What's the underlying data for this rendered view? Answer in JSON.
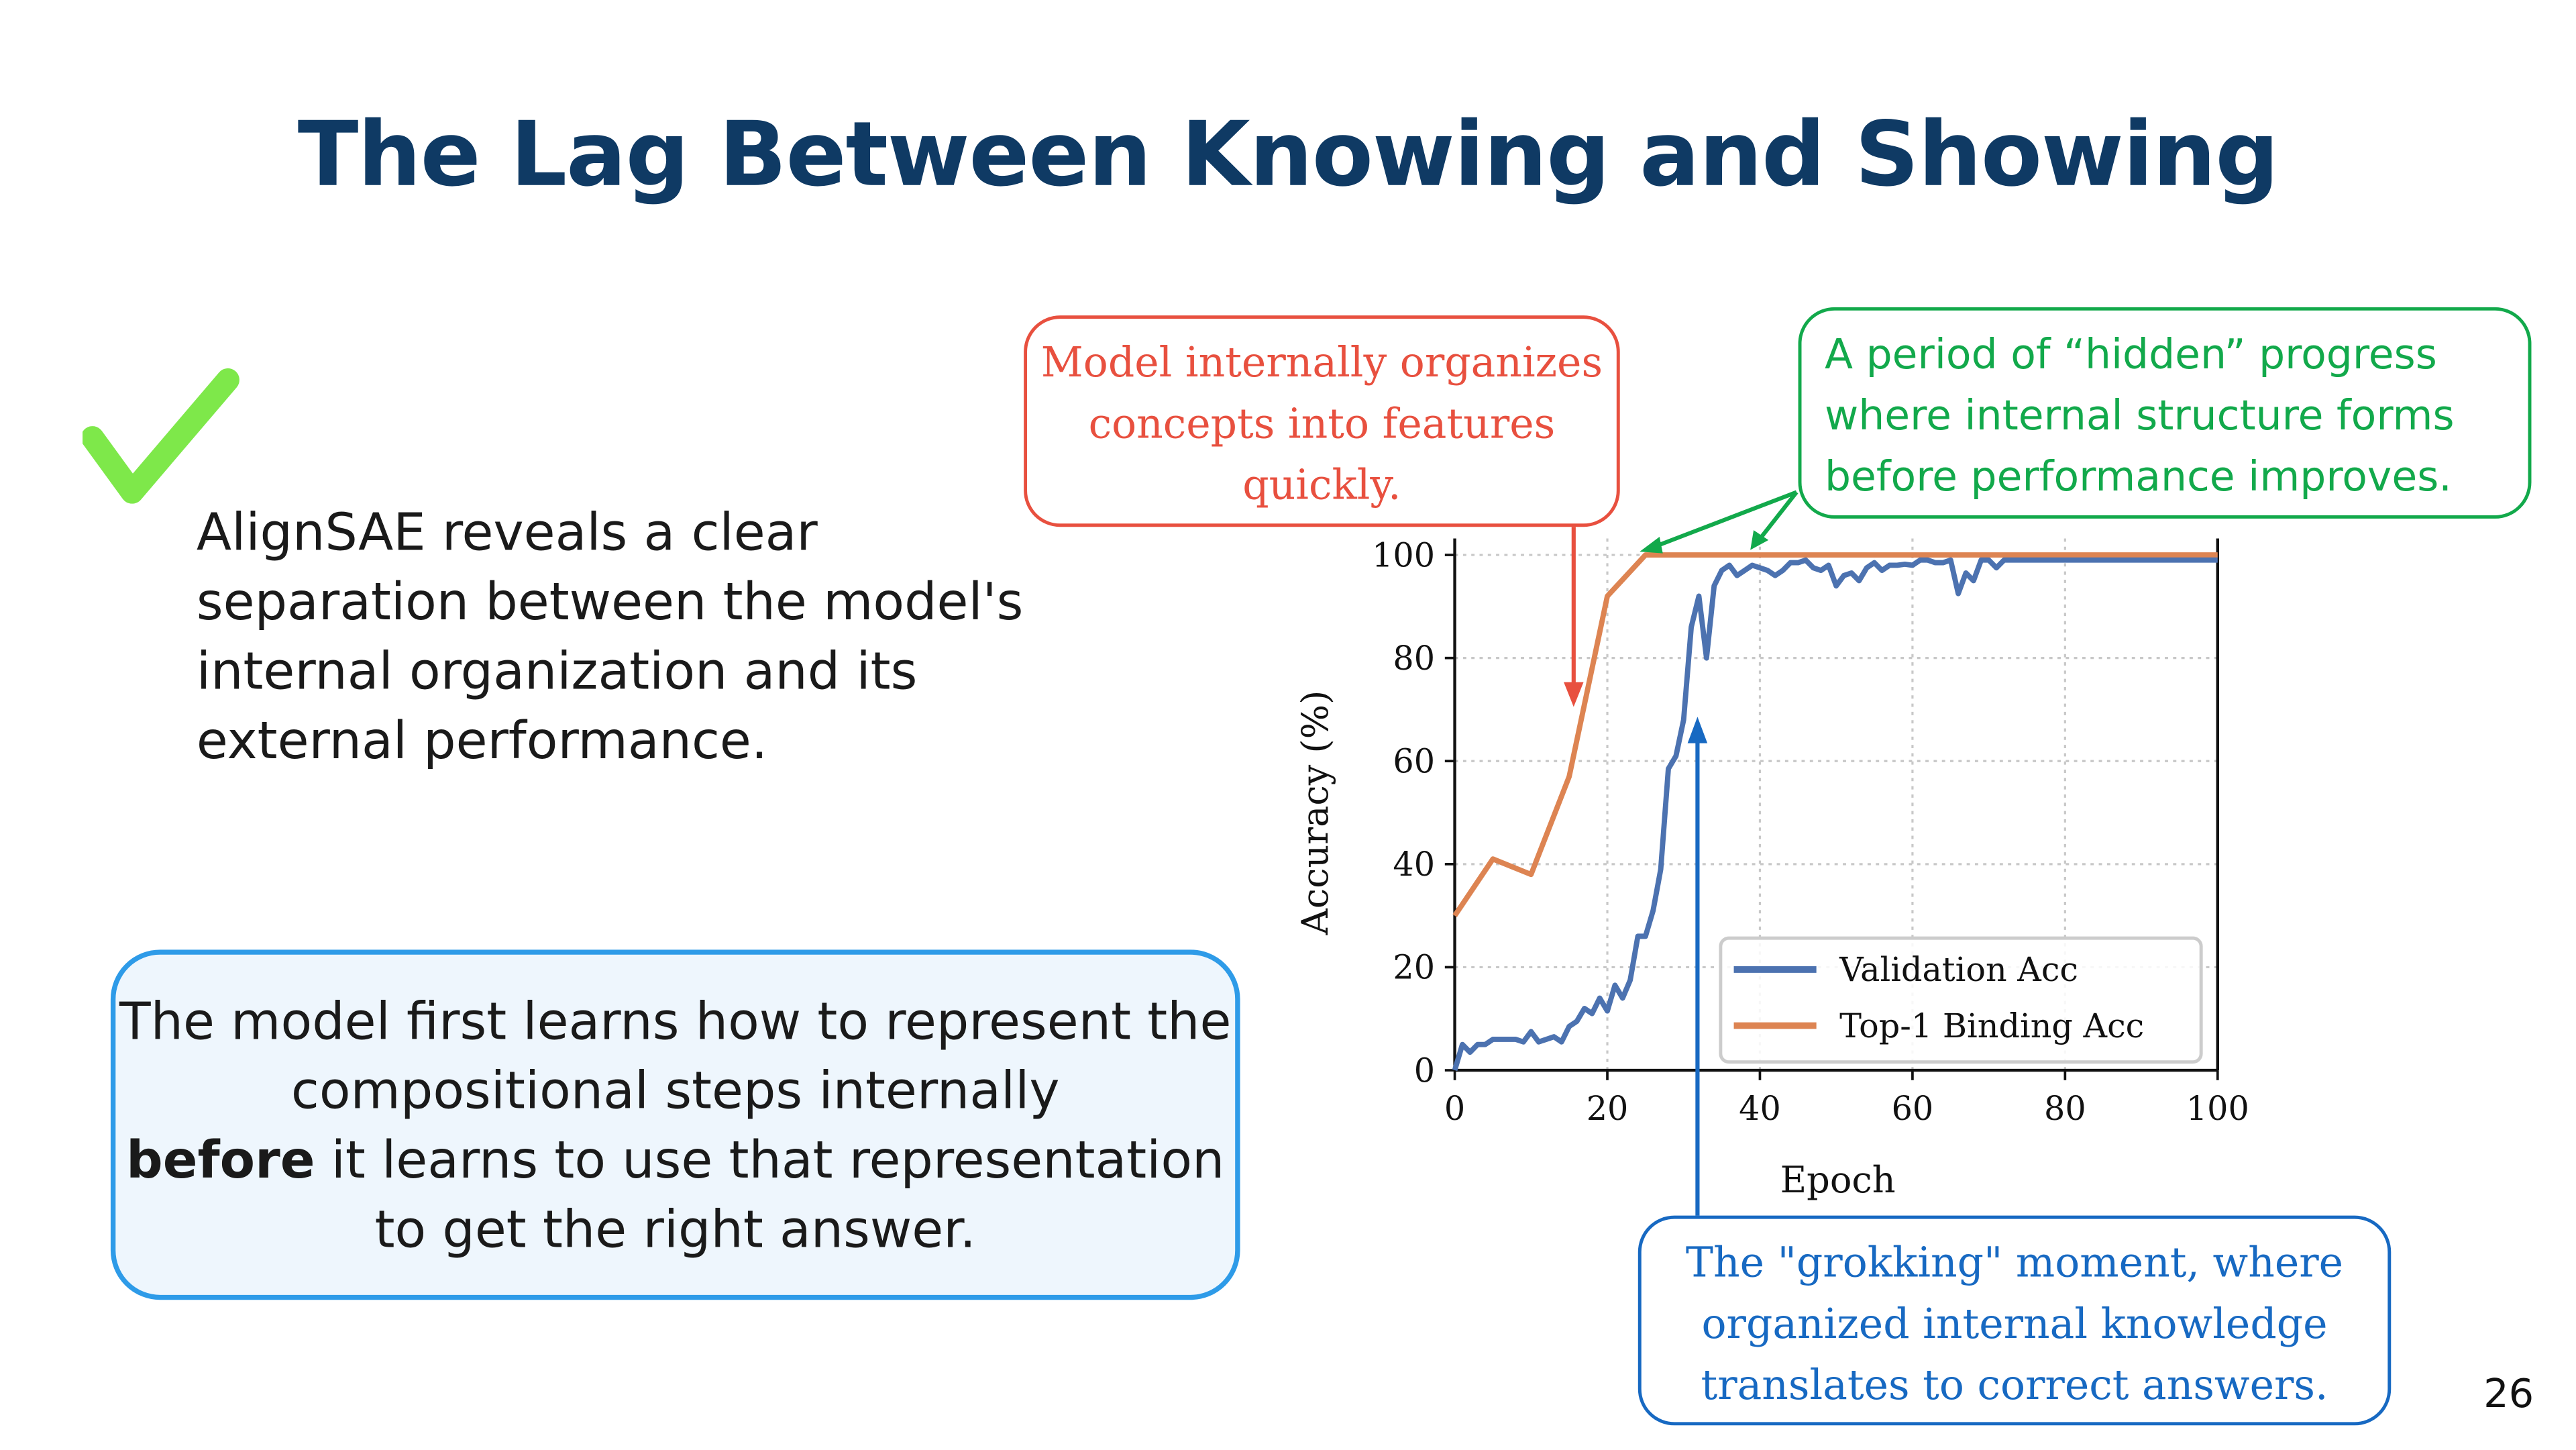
{
  "slide": {
    "title": "The Lag Between Knowing and Showing",
    "bullet_text": "AlignSAE reveals a clear separation between the model's internal organization and its external performance.",
    "check_icon_color": "#7ee84a",
    "summary_box": {
      "line1": "The model first learns how to represent the compositional steps internally",
      "bold": "before",
      "line2": " it learns to use that representation to get the right answer."
    },
    "callout_red": "Model internally organizes concepts into features quickly.",
    "callout_green": "A period of “hidden” progress where internal structure forms before performance improves.",
    "callout_blue": "The \"grokking\" moment, where organized internal knowledge translates to correct answers.",
    "page_number": "26"
  },
  "chart_data": {
    "type": "line",
    "xlabel": "Epoch",
    "ylabel": "Accuracy (%)",
    "xlim": [
      0,
      100
    ],
    "ylim": [
      0,
      100
    ],
    "xticks": [
      "0",
      "20",
      "40",
      "60",
      "80",
      "100"
    ],
    "yticks": [
      "0",
      "20",
      "40",
      "60",
      "80",
      "100"
    ],
    "grid": true,
    "legend_position": "bottom-right",
    "series": [
      {
        "name": "Validation Acc",
        "color": "#4c72b0",
        "x": [
          0,
          1,
          2,
          3,
          4,
          5,
          6,
          7,
          8,
          9,
          10,
          11,
          12,
          13,
          14,
          15,
          16,
          17,
          18,
          19,
          20,
          21,
          22,
          23,
          24,
          25,
          26,
          27,
          28,
          29,
          30,
          31,
          32,
          33,
          34,
          35,
          36,
          37,
          38,
          39,
          40,
          41,
          42,
          43,
          44,
          45,
          46,
          47,
          48,
          49,
          50,
          51,
          52,
          53,
          54,
          55,
          56,
          57,
          58,
          59,
          60,
          61,
          62,
          63,
          64,
          65,
          66,
          67,
          68,
          69,
          70,
          71,
          72,
          80,
          90,
          100
        ],
        "y": [
          0,
          5,
          3.5,
          5,
          5,
          6,
          6,
          6,
          6,
          5.5,
          7.5,
          5.5,
          6,
          6.5,
          5.5,
          8.5,
          9.5,
          12,
          11,
          14,
          11.5,
          16.5,
          14,
          17.5,
          26,
          26,
          31,
          39,
          58.5,
          61,
          68,
          86,
          92,
          80,
          94,
          97,
          98,
          96,
          97,
          98,
          97.5,
          97,
          96,
          97,
          98.5,
          98.5,
          99,
          97.5,
          97,
          98,
          94,
          96,
          96.5,
          95,
          97.5,
          98.5,
          97,
          98,
          98,
          98.2,
          98,
          99,
          99,
          98.5,
          98.5,
          99,
          92.5,
          96.5,
          95,
          99,
          99,
          97.5,
          99,
          99,
          99,
          99
        ]
      },
      {
        "name": "Top-1 Binding Acc",
        "color": "#dd8452",
        "x": [
          0,
          5,
          10,
          15,
          20,
          25,
          100
        ],
        "y": [
          30,
          41,
          38,
          57,
          92,
          100,
          100
        ]
      }
    ]
  }
}
